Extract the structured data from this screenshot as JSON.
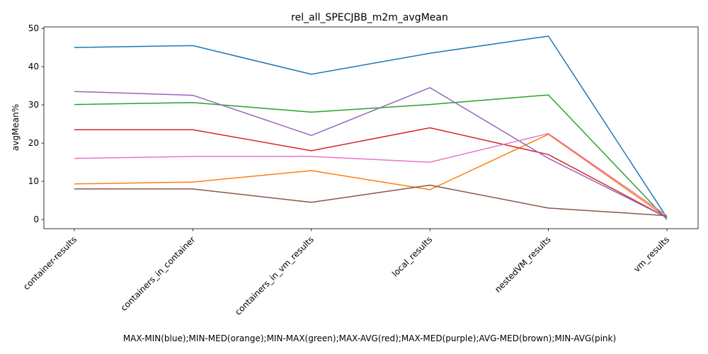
{
  "chart_data": {
    "type": "line",
    "title": "rel_all_SPECJBB_m2m_avgMean",
    "xlabel": "MAX-MIN(blue);MIN-MED(orange);MIN-MAX(green);MAX-AVG(red);MAX-MED(purple);AVG-MED(brown);MIN-AVG(pink)",
    "ylabel": "avgMean%",
    "categories": [
      "container-results",
      "containers_in_container",
      "containers_in_vm_results",
      "local_results",
      "nestedVM_results",
      "vm_results"
    ],
    "ylim": [
      -2.4,
      50.4
    ],
    "yticks": [
      0,
      10,
      20,
      30,
      40,
      50
    ],
    "grid": false,
    "series": [
      {
        "name": "MAX-MIN",
        "color": "#1f77b4",
        "values": [
          45.0,
          45.5,
          38.0,
          43.5,
          48.0,
          0.5
        ]
      },
      {
        "name": "MIN-MED",
        "color": "#ff7f0e",
        "values": [
          9.3,
          9.8,
          12.8,
          7.8,
          22.3,
          0.5
        ]
      },
      {
        "name": "MIN-MAX",
        "color": "#2ca02c",
        "values": [
          30.1,
          30.6,
          28.1,
          30.1,
          32.6,
          0.0
        ]
      },
      {
        "name": "MAX-AVG",
        "color": "#d62728",
        "values": [
          23.5,
          23.5,
          18.0,
          24.0,
          17.0,
          0.5
        ]
      },
      {
        "name": "MAX-MED",
        "color": "#9467bd",
        "values": [
          33.5,
          32.5,
          22.0,
          34.5,
          16.0,
          0.5
        ]
      },
      {
        "name": "AVG-MED",
        "color": "#8c564b",
        "values": [
          8.0,
          8.0,
          4.5,
          9.0,
          3.0,
          1.0
        ]
      },
      {
        "name": "MIN-AVG",
        "color": "#e377c2",
        "values": [
          16.0,
          16.5,
          16.5,
          15.0,
          22.5,
          1.0
        ]
      }
    ]
  }
}
